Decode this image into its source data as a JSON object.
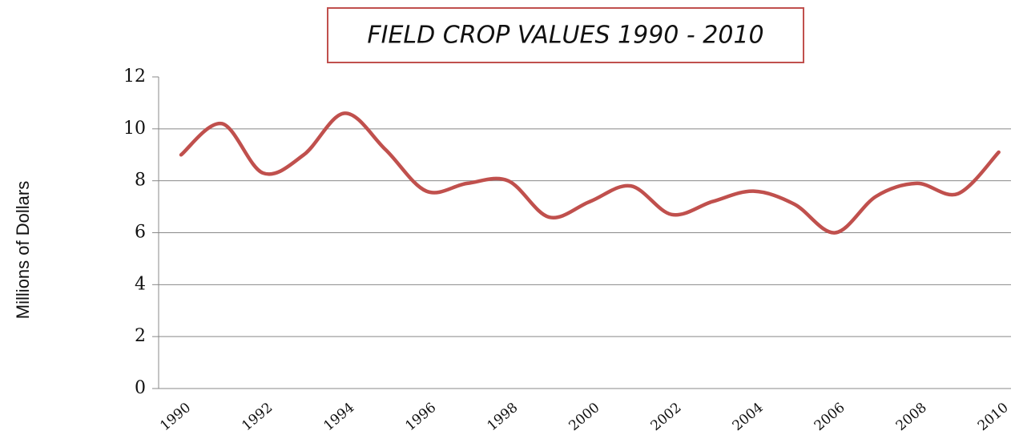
{
  "chart_data": {
    "type": "line",
    "title": "FIELD CROP VALUES 1990 - 2010",
    "y_label": "Millions of Dollars",
    "x": [
      1990,
      1991,
      1992,
      1993,
      1994,
      1995,
      1996,
      1997,
      1998,
      1999,
      2000,
      2001,
      2002,
      2003,
      2004,
      2005,
      2006,
      2007,
      2008,
      2009,
      2010
    ],
    "series": [
      {
        "name": "Field crop value",
        "color": "#c0504d",
        "values": [
          9.0,
          10.2,
          8.3,
          9.0,
          10.6,
          9.2,
          7.6,
          7.9,
          8.0,
          6.6,
          7.2,
          7.8,
          6.7,
          7.2,
          7.6,
          7.1,
          6.0,
          7.4,
          7.9,
          7.5,
          9.1
        ]
      }
    ],
    "xlim": [
      1989.45,
      2010.3
    ],
    "xticks": [
      1990,
      1992,
      1994,
      1996,
      1998,
      2000,
      2002,
      2004,
      2006,
      2008,
      2010
    ],
    "ylim": [
      0,
      12
    ],
    "yticks": [
      0,
      2,
      4,
      6,
      8,
      10,
      12
    ],
    "grid": true
  }
}
